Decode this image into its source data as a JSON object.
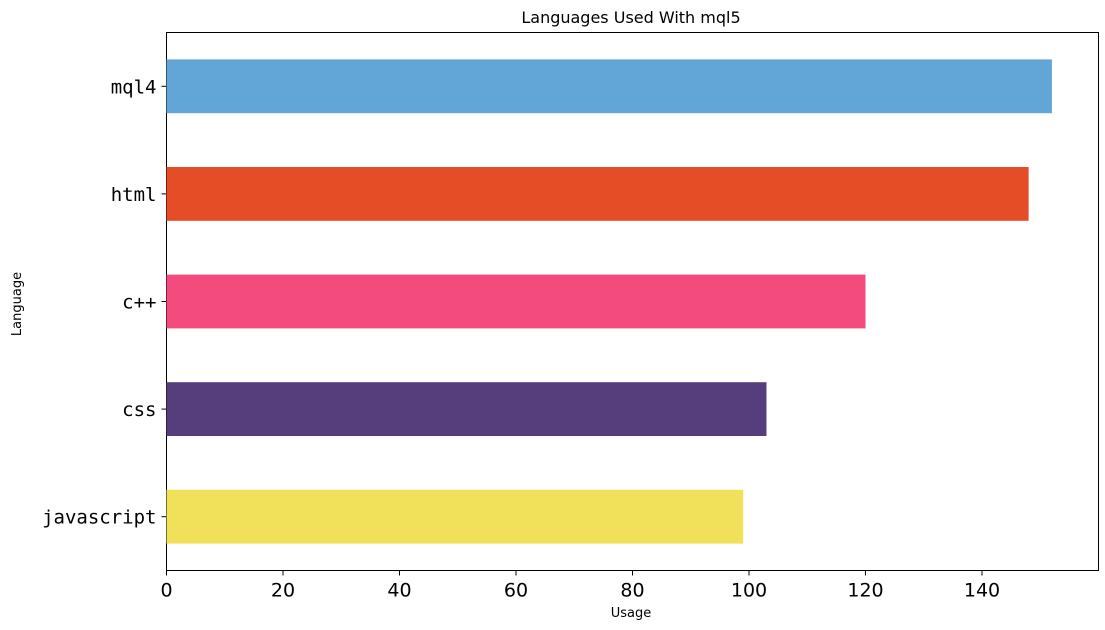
{
  "chart_data": {
    "type": "bar",
    "orientation": "horizontal",
    "title": "Languages Used With mql5",
    "xlabel": "Usage",
    "ylabel": "Language",
    "categories": [
      "mql4",
      "html",
      "c++",
      "css",
      "javascript"
    ],
    "values": [
      152,
      148,
      120,
      103,
      99
    ],
    "colors": [
      "#61a6d6",
      "#e44d26",
      "#f34b7d",
      "#563d7c",
      "#f1e05a"
    ],
    "xlim": [
      0,
      160
    ],
    "x_ticks": [
      0,
      20,
      40,
      60,
      80,
      100,
      120,
      140
    ],
    "grid": false,
    "legend": "none"
  }
}
